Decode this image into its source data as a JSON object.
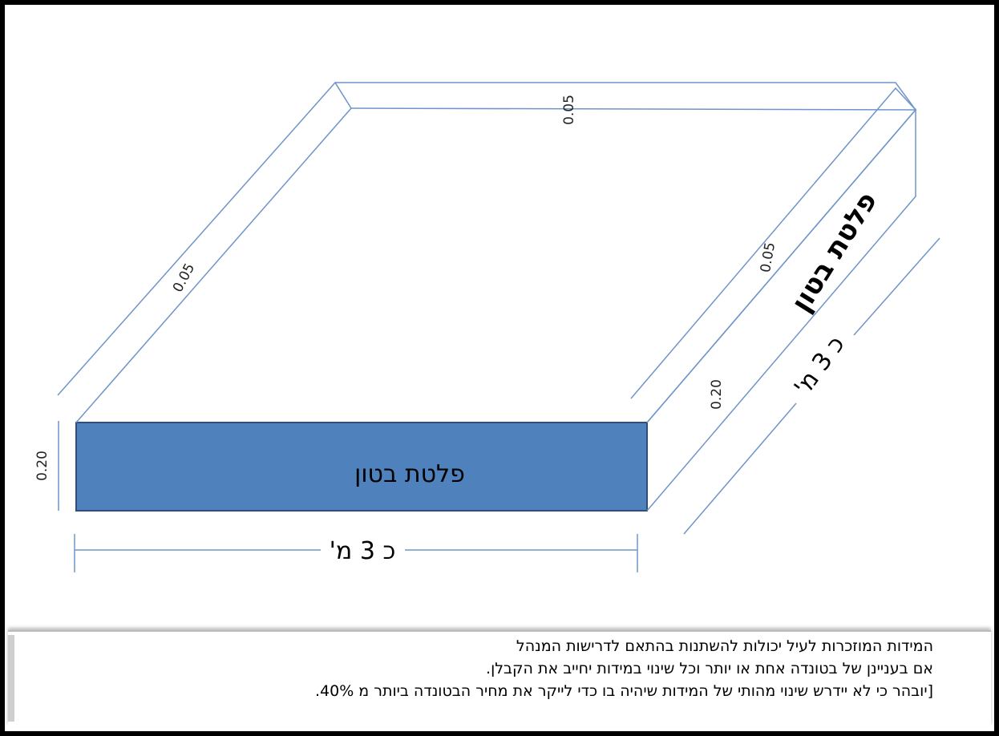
{
  "diagram": {
    "front_face_label": "פלטת בטון",
    "side_face_label": "פלטת בטון",
    "front_length_label": "כ 3 מ'",
    "side_length_label": "כ 3 מ'",
    "front_height_label": "0.20",
    "side_height_label": "0.20",
    "back_wall_label": "0.05",
    "left_wall_label": "0.05",
    "right_wall_label": "0.05",
    "colors": {
      "slab_fill": "#4f81bd",
      "slab_border": "#2f4f7a",
      "line": "#6f95c8"
    }
  },
  "notes": {
    "line1": "המידות המוזכרות לעיל יכולות להשתנות בהתאם לדרישות המנהל",
    "line2": "אם בעניינן של בטונדה אחת או יותר וכל שינוי במידות יחייב את הקבלן.",
    "line3": "[יובהר כי לא יידרש שינוי מהותי של המידות שיהיה בו כדי לייקר את מחיר הבטונדה ביותר מ 40%."
  }
}
